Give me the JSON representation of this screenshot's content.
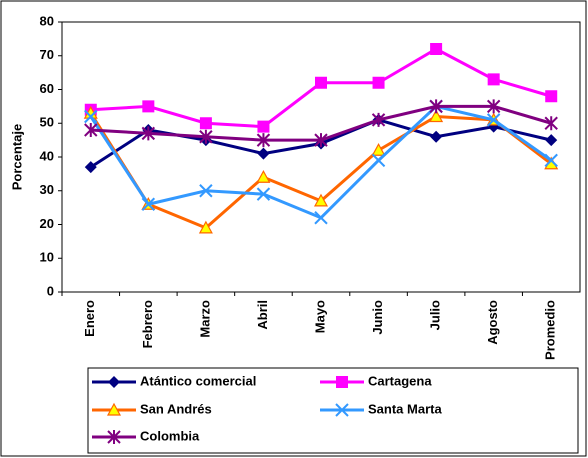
{
  "chart_data": {
    "type": "line",
    "y_label": "Porcentaje",
    "categories": [
      "Enero",
      "Febrero",
      "Marzo",
      "Abril",
      "Mayo",
      "Junio",
      "Julio",
      "Agosto",
      "Promedio"
    ],
    "series": [
      {
        "name": "Atántico comercial",
        "color": "#000080",
        "marker": "diamond",
        "values": [
          37,
          48,
          45,
          41,
          44,
          51,
          46,
          49,
          45
        ]
      },
      {
        "name": "Cartagena",
        "color": "#ff00ff",
        "marker": "square",
        "values": [
          54,
          55,
          50,
          49,
          62,
          62,
          72,
          63,
          58
        ]
      },
      {
        "name": "San Andrés",
        "color": "#ff6600",
        "marker": "triangle",
        "values": [
          53,
          26,
          19,
          34,
          27,
          42,
          52,
          51,
          38
        ]
      },
      {
        "name": "Santa Marta",
        "color": "#3399ff",
        "marker": "x",
        "values": [
          52,
          26,
          30,
          29,
          22,
          39,
          55,
          51,
          39
        ]
      },
      {
        "name": "Colombia",
        "color": "#800080",
        "marker": "star",
        "values": [
          48,
          47,
          46,
          45,
          45,
          51,
          55,
          55,
          50
        ]
      }
    ],
    "ylim": [
      0,
      80
    ],
    "yticks": [
      0,
      10,
      20,
      30,
      40,
      50,
      60,
      70,
      80
    ],
    "legend": "bottom"
  }
}
